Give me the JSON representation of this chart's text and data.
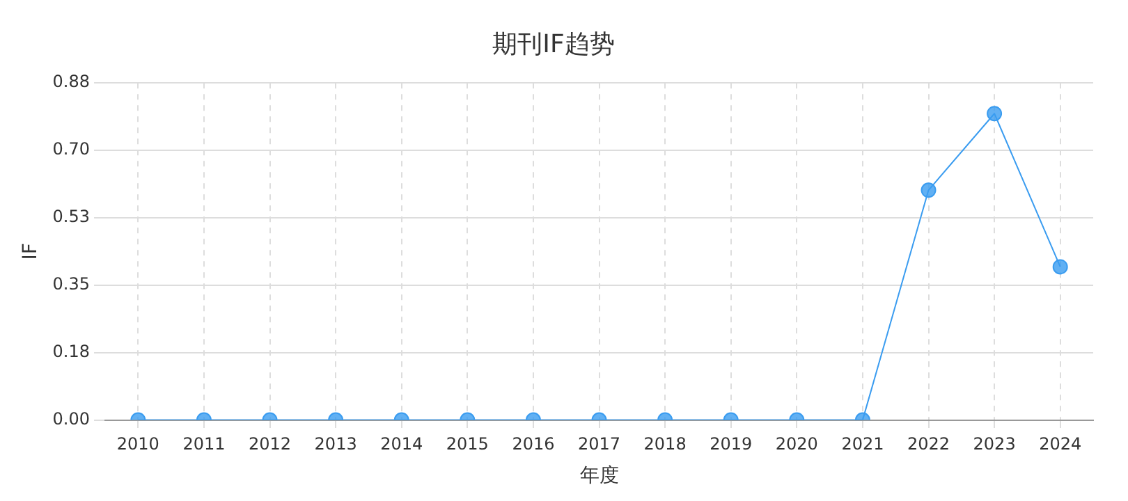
{
  "chart_data": {
    "type": "line",
    "title": "期刊IF趋势",
    "xlabel": "年度",
    "ylabel": "IF",
    "categories": [
      "2010",
      "2011",
      "2012",
      "2013",
      "2014",
      "2015",
      "2016",
      "2017",
      "2018",
      "2019",
      "2020",
      "2021",
      "2022",
      "2023",
      "2024"
    ],
    "series": [
      {
        "color": "#3a9cf0",
        "values": [
          0,
          0,
          0,
          0,
          0,
          0,
          0,
          0,
          0,
          0,
          0,
          0,
          0.6,
          0.8,
          0.4
        ]
      }
    ],
    "ylim": [
      0,
      0.88
    ],
    "yticks": [
      {
        "value": 0,
        "label": "0.00"
      },
      {
        "value": 0.176,
        "label": "0.18"
      },
      {
        "value": 0.352,
        "label": "0.35"
      },
      {
        "value": 0.528,
        "label": "0.53"
      },
      {
        "value": 0.704,
        "label": "0.70"
      },
      {
        "value": 0.88,
        "label": "0.88"
      }
    ],
    "grid": true,
    "marker": "circle",
    "line_style": "solid",
    "legend": false
  }
}
